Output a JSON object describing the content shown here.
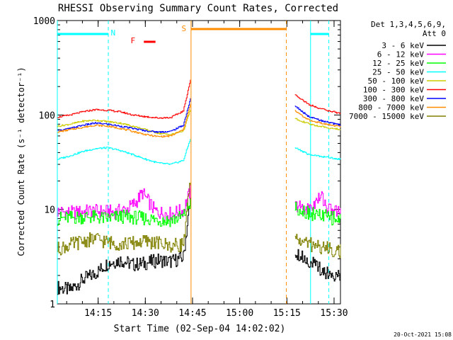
{
  "chart_data": {
    "type": "line",
    "title": "RHESSI Observing Summary Count Rates, Corrected",
    "xlabel": "Start Time (02-Sep-04 14:02:02)",
    "ylabel": "Corrected Count Rate (s⁻¹ detector⁻¹)",
    "yscale": "log",
    "ylim": [
      1,
      1000
    ],
    "xlim_min": [
      0,
      90
    ],
    "y_ticks": [
      "1",
      "10",
      "100",
      "1000"
    ],
    "x_ticks": [
      {
        "label": "14:15",
        "t": 12.97
      },
      {
        "label": "14:30",
        "t": 27.97
      },
      {
        "label": "14:45",
        "t": 42.97
      },
      {
        "label": "15:00",
        "t": 57.97
      },
      {
        "label": "15:15",
        "t": 72.97
      },
      {
        "label": "15:30",
        "t": 87.97
      }
    ],
    "legend_header": [
      "Det 1,3,4,5,6,9,",
      "Att 0"
    ],
    "legend_position": "right",
    "gaps_min": [
      [
        42.5,
        75.5
      ]
    ],
    "series": [
      {
        "name": "3 - 6 keV",
        "color": "#000000",
        "x": [
          0,
          4,
          8,
          12,
          16,
          20,
          24,
          28,
          32,
          36,
          40,
          41.5,
          42.3
        ],
        "y": [
          1.5,
          1.4,
          1.8,
          2.1,
          2.7,
          2.9,
          2.6,
          2.7,
          2.9,
          2.8,
          3.1,
          8,
          13
        ],
        "x2": [
          75.5,
          80,
          85,
          90
        ],
        "y2": [
          3.6,
          2.8,
          2.2,
          1.9
        ]
      },
      {
        "name": "6 - 12 keV",
        "color": "#ff00ff",
        "x": [
          0,
          5,
          10,
          14,
          18,
          22,
          25,
          27,
          29,
          31,
          33,
          36,
          40,
          42.3
        ],
        "y": [
          9.5,
          9.2,
          9.6,
          9.5,
          9.4,
          10.0,
          12,
          15,
          12,
          9.6,
          9.2,
          9.0,
          9.8,
          16
        ],
        "x2": [
          75.5,
          80,
          84,
          86,
          90
        ],
        "y2": [
          11,
          10,
          14,
          10,
          9.4
        ]
      },
      {
        "name": "12 - 25 keV",
        "color": "#00ff00",
        "x": [
          0,
          5,
          10,
          15,
          20,
          25,
          30,
          35,
          40,
          42.3
        ],
        "y": [
          8.0,
          8.2,
          8.4,
          8.0,
          8.4,
          8.2,
          7.9,
          7.6,
          8.4,
          12
        ],
        "x2": [
          75.5,
          80,
          85,
          90
        ],
        "y2": [
          10.5,
          9.2,
          8.4,
          7.8
        ]
      },
      {
        "name": "25 - 50 keV",
        "color": "#00ffff",
        "x": [
          0,
          4,
          8,
          12,
          16,
          20,
          24,
          28,
          32,
          36,
          40,
          42.3
        ],
        "y": [
          34,
          37,
          41,
          44,
          45,
          42,
          38,
          34,
          31,
          30,
          33,
          57
        ],
        "x2": [
          75.5,
          80,
          85,
          90
        ],
        "y2": [
          45,
          38,
          36,
          34
        ]
      },
      {
        "name": "50 - 100 keV",
        "color": "#cccc00",
        "x": [
          0,
          4,
          8,
          12,
          16,
          20,
          24,
          28,
          32,
          36,
          40,
          42.3
        ],
        "y": [
          76,
          80,
          86,
          88,
          85,
          82,
          76,
          70,
          64,
          62,
          68,
          115
        ],
        "x2": [
          75.5,
          80,
          85,
          90
        ],
        "y2": [
          92,
          80,
          74,
          70
        ]
      },
      {
        "name": "100 - 300 keV",
        "color": "#ff0000",
        "x": [
          0,
          4,
          8,
          12,
          16,
          20,
          24,
          28,
          32,
          36,
          40,
          42.3
        ],
        "y": [
          95,
          100,
          108,
          114,
          112,
          108,
          100,
          96,
          93,
          94,
          110,
          240
        ],
        "x2": [
          75.5,
          80,
          85,
          90
        ],
        "y2": [
          165,
          128,
          113,
          104
        ]
      },
      {
        "name": "300 - 800 keV",
        "color": "#0000ff",
        "x": [
          0,
          4,
          8,
          12,
          16,
          20,
          24,
          28,
          32,
          36,
          40,
          42.3
        ],
        "y": [
          68,
          72,
          78,
          82,
          80,
          76,
          72,
          68,
          66,
          67,
          78,
          150
        ],
        "x2": [
          75.5,
          80,
          85,
          90
        ],
        "y2": [
          125,
          95,
          85,
          78
        ]
      },
      {
        "name": "800 - 7000 keV",
        "color": "#ff8c00",
        "x": [
          0,
          4,
          8,
          12,
          16,
          20,
          24,
          28,
          32,
          36,
          40,
          42.3
        ],
        "y": [
          66,
          70,
          74,
          78,
          76,
          72,
          67,
          62,
          59,
          60,
          70,
          130
        ],
        "x2": [
          75.5,
          80,
          85,
          90
        ],
        "y2": [
          110,
          88,
          80,
          75
        ]
      },
      {
        "name": "7000 - 15000 keV",
        "color": "#808000",
        "x": [
          0,
          4,
          8,
          12,
          16,
          20,
          24,
          28,
          32,
          36,
          40,
          42.3
        ],
        "y": [
          3.8,
          4.2,
          4.6,
          4.9,
          4.5,
          4.3,
          4.4,
          4.6,
          4.4,
          4.1,
          4.3,
          20
        ],
        "x2": [
          75.5,
          80,
          85,
          90
        ],
        "y2": [
          4.9,
          4.3,
          3.9,
          3.6
        ]
      }
    ],
    "annotations": [
      {
        "label": "N",
        "color": "#00ffff"
      },
      {
        "label": "F",
        "color": "#ff0000"
      },
      {
        "label": "S",
        "color": "#ff8c00"
      }
    ],
    "timestamp": "20-Oct-2021 15:08"
  }
}
